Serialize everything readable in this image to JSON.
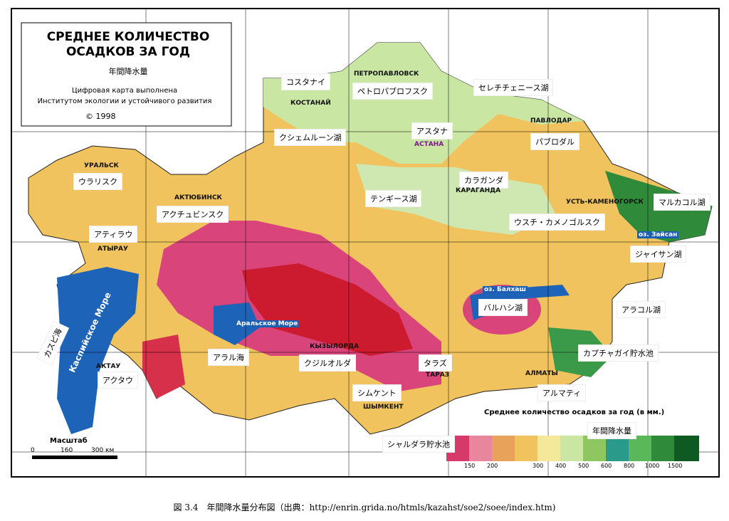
{
  "header": {
    "title_line1": "СРЕДНЕЕ КОЛИЧЕСТВО",
    "title_line2": "ОСАДКОВ ЗА ГОД",
    "subtitle": "年間降水量",
    "credit_line1": "Цифровая карта выполнена",
    "credit_line2": "Институтом экологии и устойчивого развития",
    "copyright": "© 1998"
  },
  "labels_ja": [
    "コスタナイ",
    "ペトロパブロフスク",
    "セレチチェニース湖",
    "クシェムルーン湖",
    "アスタナ",
    "パブロダル",
    "ウラリスク",
    "カラガンダ",
    "テンギース湖",
    "アクチュビンスク",
    "マルカコル湖",
    "ウスチ・カメノゴルスク",
    "アティラウ",
    "ジャイサン湖",
    "カスピ海",
    "バルハシ湖",
    "アラコル湖",
    "アラル海",
    "クジルオルダ",
    "タラズ",
    "カプチャガイ貯水池",
    "アクタウ",
    "シムケント",
    "アルマティ",
    "シャルダラ貯水池"
  ],
  "labels_ru": [
    "ПЕТРОПАВЛОВСК",
    "КОСТАНАЙ",
    "ПАВЛОДАР",
    "АСТАНА",
    "УРАЛЬСК",
    "АКТЮБИНСК",
    "КАРАГАНДА",
    "УСТЬ-КАМЕНОГОРСК",
    "АТЫРАУ",
    "оз. Зайсан",
    "оз. Балхаш",
    "Аральское Море",
    "КЫЗЫЛОРДА",
    "ТАРАЗ",
    "АЛМАТЫ",
    "АКТАУ",
    "ШЫМКЕНТ",
    "Каспийское Море"
  ],
  "legend": {
    "title": "Среднее количество осадков за год (в мм.)",
    "title_ja": "年間降水量",
    "ticks": [
      "150",
      "200",
      "300",
      "400",
      "500",
      "600",
      "800",
      "1000",
      "1500"
    ]
  },
  "scale": {
    "title": "Масштаб",
    "ticks": [
      "0",
      "160",
      "300 км"
    ]
  },
  "caption": "図 3.4　年間降水量分布図（出典：http://enrin.grida.no/htmls/kazahst/soe2/soee/index.htm)"
}
